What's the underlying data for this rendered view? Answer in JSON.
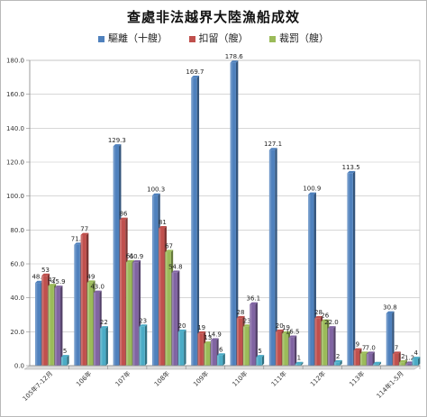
{
  "chart_data": {
    "type": "bar",
    "title": "查處非法越界大陸漁船成效",
    "categories": [
      "105年7-12月",
      "106年",
      "107年",
      "108年",
      "109年",
      "110年",
      "111年",
      "112年",
      "113年",
      "114年1-5月"
    ],
    "ylim": [
      0,
      180
    ],
    "yticks": [
      "0.0",
      "20.0",
      "40.0",
      "60.0",
      "80.0",
      "100.0",
      "120.0",
      "140.0",
      "160.0",
      "180.0"
    ],
    "grid": true,
    "legend_position": "top",
    "series": [
      {
        "name": "驅離（十艘）",
        "color": "#4f81bd",
        "values": [
          48.8,
          71.3,
          129.3,
          100.3,
          169.7,
          178.6,
          127.1,
          100.9,
          113.5,
          30.8
        ],
        "labels": [
          "48.8",
          "71.3",
          "129.3",
          "100.3",
          "169.7",
          "178.6",
          "127.1",
          "100.9",
          "113.5",
          "30.8"
        ]
      },
      {
        "name": "扣留（艘）",
        "color": "#c0504d",
        "values": [
          53,
          77,
          86,
          81,
          19,
          28,
          20,
          28,
          9,
          7
        ],
        "labels": [
          "53",
          "77",
          "86",
          "81",
          "19",
          "28",
          "20",
          "28",
          "9",
          "7"
        ]
      },
      {
        "name": "裁罰（艘）",
        "color": "#9bbb59",
        "values": [
          47,
          49,
          61,
          67,
          13,
          23,
          19,
          26,
          7,
          2
        ],
        "labels": [
          "47",
          "49",
          "61",
          "67",
          "13",
          "23",
          "19",
          "26",
          "7",
          "2"
        ]
      },
      {
        "name": "",
        "color": "#8064a2",
        "values": [
          45.9,
          43.0,
          60.9,
          54.8,
          14.9,
          36.1,
          16.5,
          22.0,
          7.0,
          1.2
        ],
        "labels": [
          "45.9",
          "43.0",
          "60.9",
          "54.8",
          "14.9",
          "36.1",
          "16.5",
          "22.0",
          "7.0",
          "1.2"
        ]
      },
      {
        "name": "",
        "color": "#4bacc6",
        "values": [
          5,
          22,
          23,
          20,
          6,
          5,
          1,
          2,
          1,
          4
        ],
        "labels": [
          "5",
          "22",
          "23",
          "20",
          "6",
          "5",
          "1",
          "2",
          "",
          "4"
        ]
      }
    ]
  }
}
